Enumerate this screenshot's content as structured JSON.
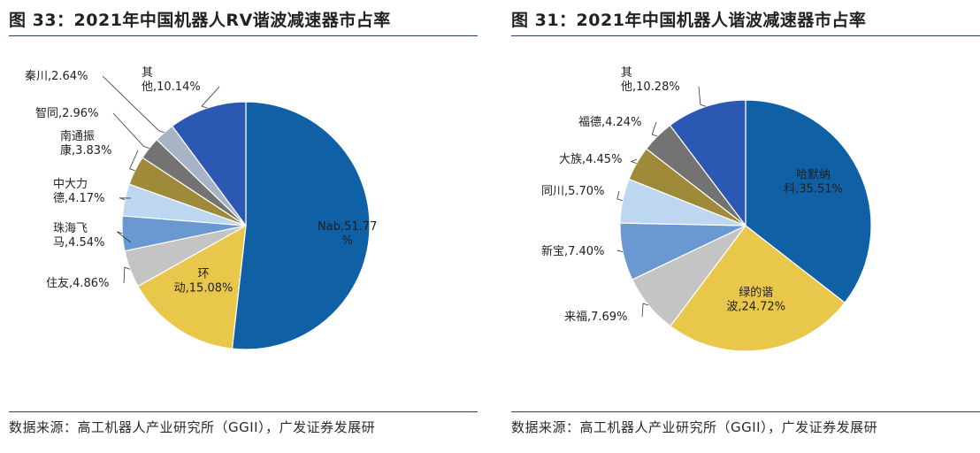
{
  "chart_data": [
    {
      "type": "pie",
      "title": "图 33：2021年中国机器人RV谐波减速器市占率",
      "source": "数据来源：高工机器人产业研究所（GGII），广发证券发展研",
      "slices": [
        {
          "name": "Nab",
          "value": 51.77,
          "label_lines": [
            "Nab,51.77",
            "%"
          ],
          "color": "#1060a6"
        },
        {
          "name": "环动",
          "value": 15.08,
          "label_lines": [
            "环",
            "动,15.08%"
          ],
          "color": "#e9c74b"
        },
        {
          "name": "住友",
          "value": 4.86,
          "label_lines": [
            "住友,4.86%"
          ],
          "color": "#c4c4c4"
        },
        {
          "name": "珠海飞马",
          "value": 4.54,
          "label_lines": [
            "珠海飞",
            "马,4.54%"
          ],
          "color": "#6a98d0"
        },
        {
          "name": "中大力德",
          "value": 4.17,
          "label_lines": [
            "中大力",
            "德,4.17%"
          ],
          "color": "#bcd7ef"
        },
        {
          "name": "南通振康",
          "value": 3.83,
          "label_lines": [
            "南通振",
            "康,3.83%"
          ],
          "color": "#9e8a38"
        },
        {
          "name": "智同",
          "value": 2.96,
          "label_lines": [
            "智同,2.96%"
          ],
          "color": "#737373"
        },
        {
          "name": "秦川",
          "value": 2.64,
          "label_lines": [
            "秦川,2.64%"
          ],
          "color": "#a8b4c6"
        },
        {
          "name": "其他",
          "value": 10.14,
          "label_lines": [
            "其",
            "他,10.14%"
          ],
          "color": "#2a58b2"
        }
      ]
    },
    {
      "type": "pie",
      "title": "图 31：2021年中国机器人谐波减速器市占率",
      "source": "数据来源：高工机器人产业研究所（GGII），广发证券发展研",
      "slices": [
        {
          "name": "哈默纳科",
          "value": 35.51,
          "label_lines": [
            "哈默纳",
            "科,35.51%"
          ],
          "color": "#1060a6"
        },
        {
          "name": "绿的谐波",
          "value": 24.72,
          "label_lines": [
            "绿的谐",
            "波,24.72%"
          ],
          "color": "#e9c74b"
        },
        {
          "name": "来福",
          "value": 7.69,
          "label_lines": [
            "来福,7.69%"
          ],
          "color": "#c4c4c4"
        },
        {
          "name": "新宝",
          "value": 7.4,
          "label_lines": [
            "新宝,7.40%"
          ],
          "color": "#6a98d0"
        },
        {
          "name": "同川",
          "value": 5.7,
          "label_lines": [
            "同川,5.70%"
          ],
          "color": "#bcd7ef"
        },
        {
          "name": "大族",
          "value": 4.45,
          "label_lines": [
            "大族,4.45%"
          ],
          "color": "#9e8a38"
        },
        {
          "name": "福德",
          "value": 4.24,
          "label_lines": [
            "福德,4.24%"
          ],
          "color": "#737373"
        },
        {
          "name": "其他",
          "value": 10.28,
          "label_lines": [
            "其",
            "他,10.28%"
          ],
          "color": "#2a58b2"
        }
      ]
    }
  ]
}
